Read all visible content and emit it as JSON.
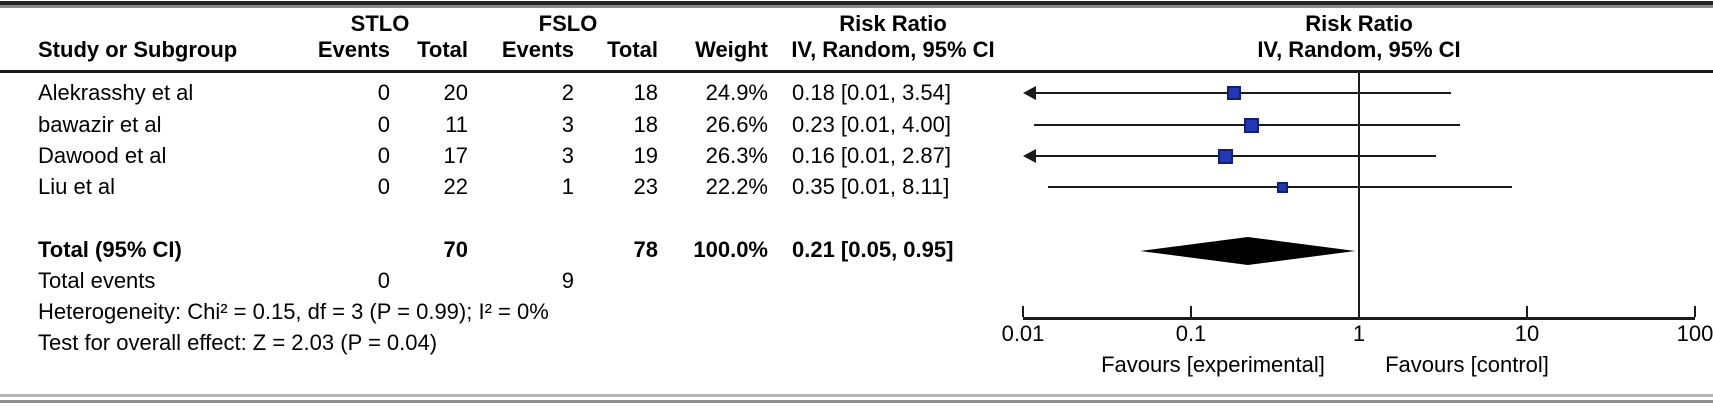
{
  "header": {
    "group1": "STLO",
    "group2": "FSLO",
    "study_col": "Study or Subgroup",
    "events_col": "Events",
    "total_col": "Total",
    "weight_col": "Weight",
    "rr_title": "Risk Ratio",
    "rr_subtitle": "IV, Random, 95% CI"
  },
  "rows": [
    {
      "study": "Alekrasshy et al",
      "events1": "0",
      "total1": "20",
      "events2": "2",
      "total2": "18",
      "weight": "24.9%",
      "ci_text": "0.18 [0.01, 3.54]"
    },
    {
      "study": "bawazir et al",
      "events1": "0",
      "total1": "11",
      "events2": "3",
      "total2": "18",
      "weight": "26.6%",
      "ci_text": "0.23 [0.01, 4.00]"
    },
    {
      "study": "Dawood et al",
      "events1": "0",
      "total1": "17",
      "events2": "3",
      "total2": "19",
      "weight": "26.3%",
      "ci_text": "0.16 [0.01, 2.87]"
    },
    {
      "study": "Liu et al",
      "events1": "0",
      "total1": "22",
      "events2": "1",
      "total2": "23",
      "weight": "22.2%",
      "ci_text": "0.35 [0.01, 8.11]"
    }
  ],
  "total": {
    "label": "Total (95% CI)",
    "total1": "70",
    "total2": "78",
    "weight": "100.0%",
    "ci_text": "0.21 [0.05, 0.95]"
  },
  "total_events": {
    "label": "Total events",
    "events1": "0",
    "events2": "9"
  },
  "footnotes": {
    "heterogeneity": "Heterogeneity: Chi² = 0.15, df = 3 (P = 0.99); I² = 0%",
    "overall_effect": "Test for overall effect: Z = 2.03 (P = 0.04)"
  },
  "axis": {
    "tick_labels": [
      "0.01",
      "0.1",
      "1",
      "10",
      "100"
    ],
    "favours_left": "Favours [experimental]",
    "favours_right": "Favours [control]"
  },
  "colors": {
    "marker_fill": "#2138b8",
    "marker_border": "#13206e",
    "diamond": "#000000",
    "line": "#1a1a1a"
  },
  "chart_data": {
    "type": "forest",
    "effect_measure": "Risk Ratio",
    "model": "IV, Random, 95% CI",
    "x_scale": "log",
    "xlim": [
      0.01,
      100
    ],
    "x_ticks": [
      0.01,
      0.1,
      1,
      10,
      100
    ],
    "studies": [
      {
        "name": "Alekrasshy et al",
        "events_exp": 0,
        "total_exp": 20,
        "events_ctrl": 2,
        "total_ctrl": 18,
        "weight_pct": 24.9,
        "rr": 0.18,
        "ci": [
          0.01,
          3.54
        ],
        "ci_low_clipped": true
      },
      {
        "name": "bawazir et al",
        "events_exp": 0,
        "total_exp": 11,
        "events_ctrl": 3,
        "total_ctrl": 18,
        "weight_pct": 26.6,
        "rr": 0.23,
        "ci": [
          0.01,
          4.0
        ],
        "ci_low_clipped": false
      },
      {
        "name": "Dawood et al",
        "events_exp": 0,
        "total_exp": 17,
        "events_ctrl": 3,
        "total_ctrl": 19,
        "weight_pct": 26.3,
        "rr": 0.16,
        "ci": [
          0.01,
          2.87
        ],
        "ci_low_clipped": true
      },
      {
        "name": "Liu et al",
        "events_exp": 0,
        "total_exp": 22,
        "events_ctrl": 1,
        "total_ctrl": 23,
        "weight_pct": 22.2,
        "rr": 0.35,
        "ci": [
          0.01,
          8.11
        ],
        "ci_low_clipped": false
      }
    ],
    "total": {
      "name": "Total (95% CI)",
      "total_exp": 70,
      "total_ctrl": 78,
      "events_exp": 0,
      "events_ctrl": 9,
      "weight_pct": 100.0,
      "rr": 0.21,
      "ci": [
        0.05,
        0.95
      ]
    },
    "heterogeneity": {
      "chi2": 0.15,
      "df": 3,
      "p": 0.99,
      "i2_pct": 0
    },
    "overall_effect": {
      "z": 2.03,
      "p": 0.04
    },
    "favours": [
      "Favours [experimental]",
      "Favours [control]"
    ]
  }
}
